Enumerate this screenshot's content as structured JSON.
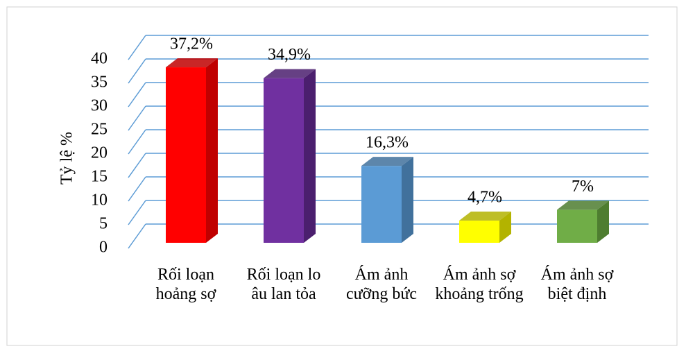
{
  "chart_data": {
    "type": "bar3d",
    "y_label": "Tỷ lệ %",
    "categories": [
      "Rối loạn hoảng sợ",
      "Rối loạn lo âu lan tỏa",
      "Ám ảnh cưỡng bức",
      "Ám ảnh sợ khoảng trống",
      "Ám ảnh sợ biệt định"
    ],
    "values": [
      37.2,
      34.9,
      16.3,
      4.7,
      7
    ],
    "value_labels": [
      "37,2%",
      "34,9%",
      "16,3%",
      "4,7%",
      "7%"
    ],
    "colors": [
      "#ff0000",
      "#7030a0",
      "#5b9bd5",
      "#ffff00",
      "#70ad47"
    ],
    "side_colors": [
      "#c00000",
      "#4b1f6e",
      "#41719c",
      "#b3b300",
      "#4e7d30"
    ],
    "ylim": [
      0,
      40
    ],
    "yticks": [
      0,
      5,
      10,
      15,
      20,
      25,
      30,
      35,
      40
    ],
    "grid": true,
    "grid_color": "#5b9bd5"
  }
}
